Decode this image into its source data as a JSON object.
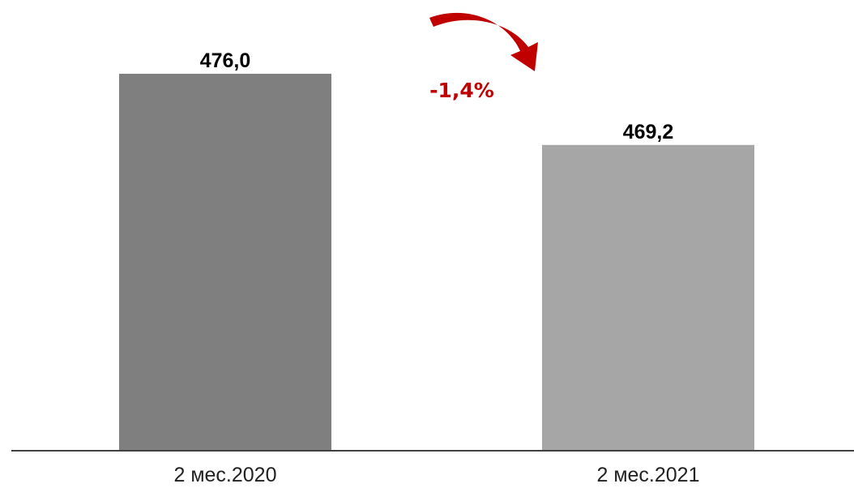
{
  "chart_data": {
    "type": "bar",
    "categories": [
      "2 мес.2020",
      "2 мес.2021"
    ],
    "values": [
      476.0,
      469.2
    ],
    "value_labels": [
      "476,0",
      "469,2"
    ],
    "bar_colors": [
      "#7f7f7f",
      "#a6a6a6"
    ],
    "ylim": [
      440,
      480
    ],
    "grid": false,
    "annotation": {
      "text": "-1,4%",
      "color": "#c00000",
      "icon": "curved-arrow-down-icon"
    }
  }
}
